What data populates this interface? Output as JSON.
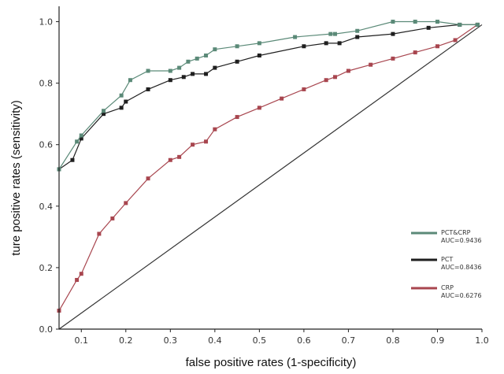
{
  "chart_data": {
    "type": "line",
    "xlabel": "false positive rates (1-specificity)",
    "ylabel": "ture positive rates (sensitivity)",
    "xlim": [
      0.05,
      1.0
    ],
    "ylim": [
      0.0,
      1.05
    ],
    "x_ticks": [
      "0.1",
      "0.2",
      "0.3",
      "0.4",
      "0.5",
      "0.6",
      "0.7",
      "0.8",
      "0.9",
      "1.0"
    ],
    "x_tick_values": [
      0.1,
      0.2,
      0.3,
      0.4,
      0.5,
      0.6,
      0.7,
      0.8,
      0.9,
      1.0
    ],
    "y_ticks": [
      "0.0",
      "0.2",
      "0.4",
      "0.6",
      "0.8",
      "1.0"
    ],
    "y_tick_values": [
      0.0,
      0.2,
      0.4,
      0.6,
      0.8,
      1.0
    ],
    "grid": false,
    "legend_position": "bottom-right",
    "reference_line": {
      "x": [
        0.05,
        1.0
      ],
      "y": [
        0.0,
        0.99
      ]
    },
    "series": [
      {
        "name": "PCT&CRP",
        "auc_label": "AUC=0.9436",
        "color": "#5b8a78",
        "x": [
          0.05,
          0.09,
          0.1,
          0.15,
          0.19,
          0.21,
          0.25,
          0.3,
          0.32,
          0.34,
          0.36,
          0.38,
          0.4,
          0.45,
          0.5,
          0.58,
          0.66,
          0.67,
          0.72,
          0.8,
          0.85,
          0.9,
          0.95,
          0.99
        ],
        "y": [
          0.52,
          0.61,
          0.63,
          0.71,
          0.76,
          0.81,
          0.84,
          0.84,
          0.85,
          0.87,
          0.88,
          0.89,
          0.91,
          0.92,
          0.93,
          0.95,
          0.96,
          0.96,
          0.97,
          1.0,
          1.0,
          1.0,
          0.99,
          0.99
        ]
      },
      {
        "name": "PCT",
        "auc_label": "AUC=0.8436",
        "color": "#1f1f1f",
        "x": [
          0.05,
          0.08,
          0.1,
          0.15,
          0.19,
          0.2,
          0.25,
          0.3,
          0.33,
          0.35,
          0.38,
          0.4,
          0.45,
          0.5,
          0.6,
          0.65,
          0.68,
          0.72,
          0.8,
          0.88,
          0.95,
          0.99
        ],
        "y": [
          0.52,
          0.55,
          0.62,
          0.7,
          0.72,
          0.74,
          0.78,
          0.81,
          0.82,
          0.83,
          0.83,
          0.85,
          0.87,
          0.89,
          0.92,
          0.93,
          0.93,
          0.95,
          0.96,
          0.98,
          0.99,
          0.99
        ]
      },
      {
        "name": "CRP",
        "auc_label": "AUC=0.6276",
        "color": "#a8464f",
        "x": [
          0.05,
          0.09,
          0.1,
          0.14,
          0.17,
          0.2,
          0.25,
          0.3,
          0.32,
          0.35,
          0.38,
          0.4,
          0.45,
          0.5,
          0.55,
          0.6,
          0.65,
          0.67,
          0.7,
          0.75,
          0.8,
          0.85,
          0.9,
          0.94,
          0.99
        ],
        "y": [
          0.06,
          0.16,
          0.18,
          0.31,
          0.36,
          0.41,
          0.49,
          0.55,
          0.56,
          0.6,
          0.61,
          0.65,
          0.69,
          0.72,
          0.75,
          0.78,
          0.81,
          0.82,
          0.84,
          0.86,
          0.88,
          0.9,
          0.92,
          0.94,
          0.99
        ]
      }
    ]
  }
}
